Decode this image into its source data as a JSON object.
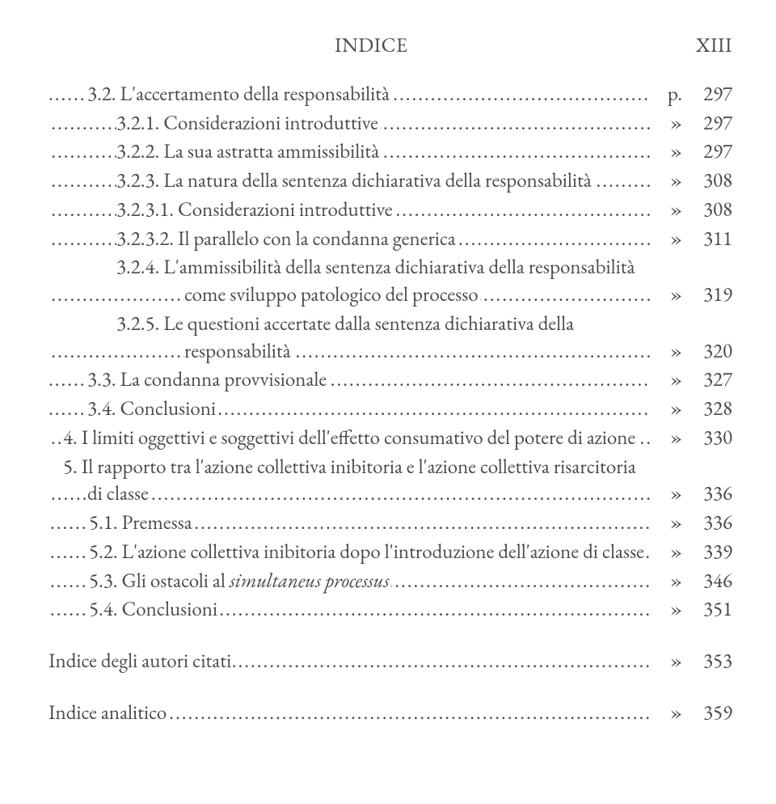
{
  "header": {
    "label": "INDICE",
    "roman": "XIII"
  },
  "entries": [
    {
      "cls": "hang-sub",
      "text": "3.2. L'accertamento della responsabilità",
      "marker": "p.",
      "page": "297"
    },
    {
      "cls": "hang-subsub",
      "text": "3.2.1. Considerazioni introduttive",
      "marker": "»",
      "page": "297"
    },
    {
      "cls": "hang-subsub",
      "text": "3.2.2. La sua astratta ammissibilità",
      "marker": "»",
      "page": "297"
    },
    {
      "cls": "hang-subsub",
      "text": "3.2.3. La natura della sentenza dichiarativa della responsabilità",
      "marker": "»",
      "page": "308"
    },
    {
      "cls": "hang-subsub",
      "text": "3.2.3.1. Considerazioni introduttive",
      "marker": "»",
      "page": "308"
    },
    {
      "cls": "hang-subsub",
      "text": "3.2.3.2. Il parallelo con la condanna generica",
      "marker": "»",
      "page": "311"
    },
    {
      "cls": "hang-subsub",
      "text": "3.2.4. L'ammissibilità della sentenza dichiarativa della responsabilità come sviluppo patologico del processo",
      "marker": "»",
      "page": "319"
    },
    {
      "cls": "hang-subsub",
      "text": "3.2.5. Le questioni accertate dalla sentenza dichiarativa della responsabilità",
      "marker": "»",
      "page": "320"
    },
    {
      "cls": "hang-sub",
      "text": "3.3. La condanna provvisionale",
      "marker": "»",
      "page": "327"
    },
    {
      "cls": "hang-sub",
      "text": "3.4. Conclusioni",
      "marker": "»",
      "page": "328"
    },
    {
      "cls": "hang-main",
      "text": "4. I limiti oggettivi e soggettivi dell'effetto consumativo del potere di azione",
      "marker": "»",
      "page": "330"
    },
    {
      "cls": "hang-main",
      "text": "5. Il rapporto tra l'azione collettiva inibitoria e l'azione collettiva risarcitoria di classe",
      "marker": "»",
      "page": "336"
    },
    {
      "cls": "hang-sub1",
      "text": "5.1. Premessa",
      "marker": "»",
      "page": "336"
    },
    {
      "cls": "hang-sub1",
      "text": "5.2. L'azione collettiva inibitoria dopo l'introduzione dell'azione di classe",
      "marker": "»",
      "page": "339"
    },
    {
      "cls": "hang-sub1",
      "html": "5.3. Gli ostacoli al <span class=\"it\">simultaneus processus</span>",
      "marker": "»",
      "page": "346"
    },
    {
      "cls": "hang-sub1",
      "text": "5.4. Conclusioni",
      "marker": "»",
      "page": "351"
    }
  ],
  "tail": [
    {
      "text": "Indice degli autori citati",
      "marker": "»",
      "page": "353"
    },
    {
      "text": "Indice analitico",
      "marker": "»",
      "page": "359"
    }
  ],
  "colors": {
    "text": "#4a4a4a",
    "background": "#ffffff"
  },
  "typography": {
    "family": "Garamond serif",
    "size_pt": 19,
    "header_size_pt": 19
  }
}
